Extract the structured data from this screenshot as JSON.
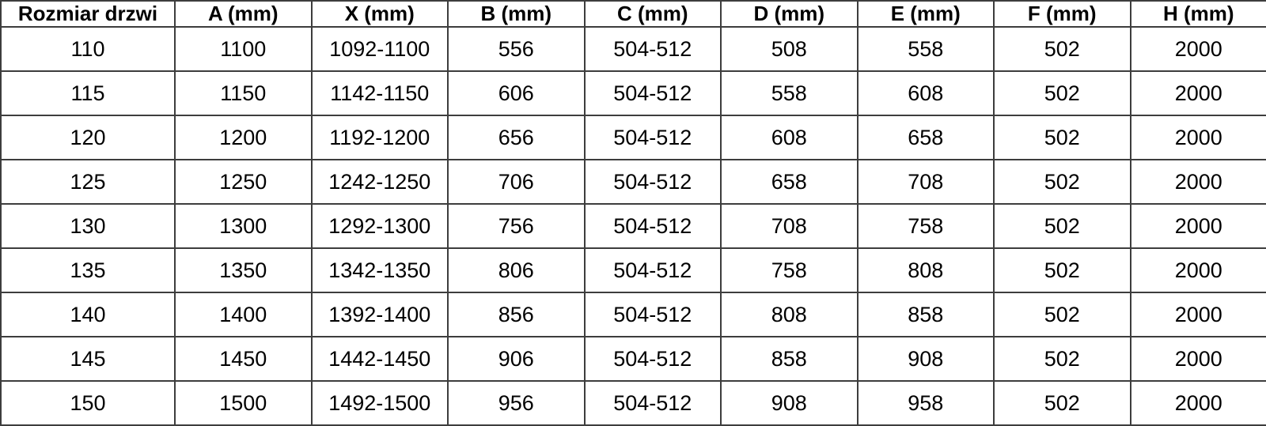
{
  "table": {
    "name": "door-dimensions-table",
    "columns": [
      "Rozmiar drzwi",
      "A (mm)",
      "X (mm)",
      "B (mm)",
      "C (mm)",
      "D (mm)",
      "E (mm)",
      "F (mm)",
      "H (mm)"
    ],
    "rows": [
      [
        "110",
        "1100",
        "1092-1100",
        "556",
        "504-512",
        "508",
        "558",
        "502",
        "2000"
      ],
      [
        "115",
        "1150",
        "1142-1150",
        "606",
        "504-512",
        "558",
        "608",
        "502",
        "2000"
      ],
      [
        "120",
        "1200",
        "1192-1200",
        "656",
        "504-512",
        "608",
        "658",
        "502",
        "2000"
      ],
      [
        "125",
        "1250",
        "1242-1250",
        "706",
        "504-512",
        "658",
        "708",
        "502",
        "2000"
      ],
      [
        "130",
        "1300",
        "1292-1300",
        "756",
        "504-512",
        "708",
        "758",
        "502",
        "2000"
      ],
      [
        "135",
        "1350",
        "1342-1350",
        "806",
        "504-512",
        "758",
        "808",
        "502",
        "2000"
      ],
      [
        "140",
        "1400",
        "1392-1400",
        "856",
        "504-512",
        "808",
        "858",
        "502",
        "2000"
      ],
      [
        "145",
        "1450",
        "1442-1450",
        "906",
        "504-512",
        "858",
        "908",
        "502",
        "2000"
      ],
      [
        "150",
        "1500",
        "1492-1500",
        "956",
        "504-512",
        "908",
        "958",
        "502",
        "2000"
      ]
    ],
    "colors": {
      "border": "#3d3d3d",
      "text": "#000000",
      "background": "#ffffff"
    }
  },
  "chart_data": {
    "type": "table",
    "title": "",
    "columns": [
      "Rozmiar drzwi",
      "A (mm)",
      "X (mm)",
      "B (mm)",
      "C (mm)",
      "D (mm)",
      "E (mm)",
      "F (mm)",
      "H (mm)"
    ],
    "rows": [
      [
        "110",
        "1100",
        "1092-1100",
        "556",
        "504-512",
        "508",
        "558",
        "502",
        "2000"
      ],
      [
        "115",
        "1150",
        "1142-1150",
        "606",
        "504-512",
        "558",
        "608",
        "502",
        "2000"
      ],
      [
        "120",
        "1200",
        "1192-1200",
        "656",
        "504-512",
        "608",
        "658",
        "502",
        "2000"
      ],
      [
        "125",
        "1250",
        "1242-1250",
        "706",
        "504-512",
        "658",
        "708",
        "502",
        "2000"
      ],
      [
        "130",
        "1300",
        "1292-1300",
        "756",
        "504-512",
        "708",
        "758",
        "502",
        "2000"
      ],
      [
        "135",
        "1350",
        "1342-1350",
        "806",
        "504-512",
        "758",
        "808",
        "502",
        "2000"
      ],
      [
        "140",
        "1400",
        "1392-1400",
        "856",
        "504-512",
        "808",
        "858",
        "502",
        "2000"
      ],
      [
        "145",
        "1450",
        "1442-1450",
        "906",
        "504-512",
        "858",
        "908",
        "502",
        "2000"
      ],
      [
        "150",
        "1500",
        "1492-1500",
        "956",
        "504-512",
        "908",
        "958",
        "502",
        "2000"
      ]
    ]
  }
}
